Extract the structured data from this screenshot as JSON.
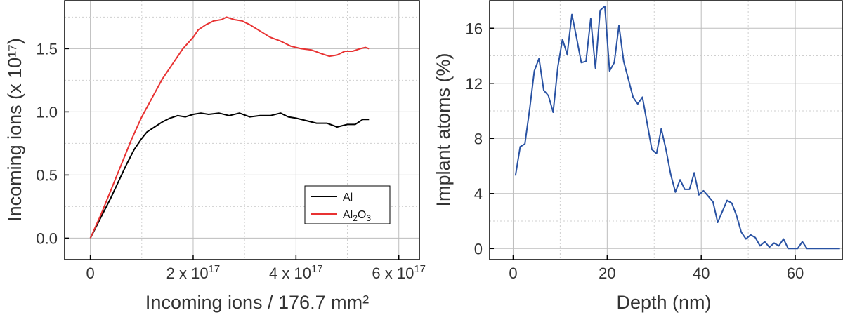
{
  "chart_data": [
    {
      "type": "line",
      "xlabel": "Incoming ions / 176.7 mm²",
      "ylabel": "Incoming ions (x 10¹⁷)",
      "xlim": [
        -0.5,
        6.4
      ],
      "ylim": [
        -0.17,
        1.88
      ],
      "x_scale_factor": 1e+17,
      "grid": true,
      "legend_position": "bottom-right",
      "x_ticks": [
        {
          "value": 0,
          "base": "0",
          "exp": ""
        },
        {
          "value": 2,
          "base": "2 x 10",
          "exp": "17"
        },
        {
          "value": 4,
          "base": "4 x 10",
          "exp": "17"
        },
        {
          "value": 6,
          "base": "6 x 10",
          "exp": "17"
        }
      ],
      "y_ticks": [
        {
          "value": 0.0,
          "label": "0.0"
        },
        {
          "value": 0.5,
          "label": "0.5"
        },
        {
          "value": 1.0,
          "label": "1.0"
        },
        {
          "value": 1.5,
          "label": "1.5"
        }
      ],
      "series": [
        {
          "name": "Al",
          "color": "#000000",
          "x": [
            0,
            0.2,
            0.4,
            0.55,
            0.7,
            0.85,
            1.0,
            1.1,
            1.25,
            1.4,
            1.55,
            1.7,
            1.85,
            2.0,
            2.15,
            2.3,
            2.5,
            2.7,
            2.9,
            3.1,
            3.3,
            3.5,
            3.7,
            3.85,
            4.0,
            4.2,
            4.4,
            4.6,
            4.8,
            5.0,
            5.15,
            5.3,
            5.42
          ],
          "y": [
            0.0,
            0.16,
            0.32,
            0.45,
            0.58,
            0.7,
            0.79,
            0.84,
            0.88,
            0.92,
            0.95,
            0.97,
            0.96,
            0.98,
            0.99,
            0.98,
            0.99,
            0.97,
            0.99,
            0.96,
            0.97,
            0.97,
            0.99,
            0.96,
            0.95,
            0.93,
            0.91,
            0.91,
            0.88,
            0.9,
            0.9,
            0.94,
            0.94
          ]
        },
        {
          "name": "Al2O3",
          "color": "#e83232",
          "x": [
            0,
            0.2,
            0.4,
            0.6,
            0.8,
            1.0,
            1.2,
            1.4,
            1.6,
            1.8,
            2.0,
            2.1,
            2.25,
            2.4,
            2.55,
            2.65,
            2.8,
            2.95,
            3.1,
            3.3,
            3.5,
            3.7,
            3.9,
            4.1,
            4.3,
            4.5,
            4.65,
            4.8,
            4.95,
            5.1,
            5.25,
            5.35,
            5.42
          ],
          "y": [
            0.0,
            0.18,
            0.38,
            0.58,
            0.78,
            0.96,
            1.11,
            1.26,
            1.38,
            1.5,
            1.59,
            1.65,
            1.69,
            1.72,
            1.73,
            1.75,
            1.73,
            1.72,
            1.69,
            1.64,
            1.59,
            1.56,
            1.52,
            1.5,
            1.49,
            1.46,
            1.44,
            1.45,
            1.48,
            1.48,
            1.5,
            1.51,
            1.5
          ]
        }
      ],
      "legend": [
        {
          "series": 0,
          "base": "Al",
          "parts": []
        },
        {
          "series": 1,
          "base": "Al",
          "parts": [
            {
              "t": "2",
              "s": "sub"
            },
            {
              "t": "O",
              "s": ""
            },
            {
              "t": "3",
              "s": "sub"
            }
          ]
        }
      ]
    },
    {
      "type": "line",
      "xlabel": "Depth (nm)",
      "ylabel": "Implant atoms (%)",
      "xlim": [
        -5,
        70
      ],
      "ylim": [
        -0.8,
        18
      ],
      "grid": true,
      "x_ticks": [
        {
          "value": 0,
          "label": "0"
        },
        {
          "value": 20,
          "label": "20"
        },
        {
          "value": 40,
          "label": "40"
        },
        {
          "value": 60,
          "label": "60"
        }
      ],
      "y_ticks": [
        {
          "value": 0,
          "label": "0"
        },
        {
          "value": 4,
          "label": "4"
        },
        {
          "value": 8,
          "label": "8"
        },
        {
          "value": 12,
          "label": "12"
        },
        {
          "value": 16,
          "label": "16"
        }
      ],
      "series": [
        {
          "color": "#2952a3",
          "x": [
            0.5,
            1.5,
            2.5,
            3.5,
            4.5,
            5.5,
            6.5,
            7.5,
            8.5,
            9.5,
            10.5,
            11.5,
            12.5,
            13.5,
            14.5,
            15.5,
            16.5,
            17.5,
            18.5,
            19.5,
            20.5,
            21.5,
            22.5,
            23.5,
            24.5,
            25.5,
            26.5,
            27.5,
            28.5,
            29.5,
            30.5,
            31.5,
            32.5,
            33.5,
            34.5,
            35.5,
            36.5,
            37.5,
            38.5,
            39.5,
            40.5,
            41.5,
            42.5,
            43.5,
            44.5,
            45.5,
            46.5,
            47.5,
            48.5,
            49.5,
            50.5,
            51.5,
            52.5,
            53.5,
            54.5,
            55.5,
            56.5,
            57.5,
            58.5,
            59.5,
            60.5,
            61.5,
            62.5,
            63.5,
            64.5,
            65.5,
            66.5,
            67.5,
            68.5,
            69.5
          ],
          "y": [
            5.3,
            7.4,
            7.6,
            10.1,
            12.9,
            13.8,
            11.5,
            11.1,
            9.9,
            13.2,
            15.2,
            14.1,
            17.0,
            15.3,
            13.5,
            13.6,
            16.7,
            13.1,
            17.3,
            17.6,
            12.9,
            13.5,
            16.2,
            13.6,
            12.3,
            11.0,
            10.5,
            11.0,
            9.1,
            7.2,
            6.9,
            8.7,
            7.2,
            5.4,
            4.1,
            5.0,
            4.3,
            4.3,
            5.5,
            3.9,
            4.2,
            3.8,
            3.4,
            1.9,
            2.7,
            3.5,
            3.3,
            2.4,
            1.2,
            0.7,
            1.0,
            0.8,
            0.2,
            0.5,
            0.1,
            0.4,
            0.2,
            0.7,
            0.0,
            0.0,
            0.0,
            0.5,
            0.0,
            0.0,
            0.0,
            0.0,
            0.0,
            0.0,
            0.0,
            0.0
          ]
        }
      ]
    }
  ]
}
